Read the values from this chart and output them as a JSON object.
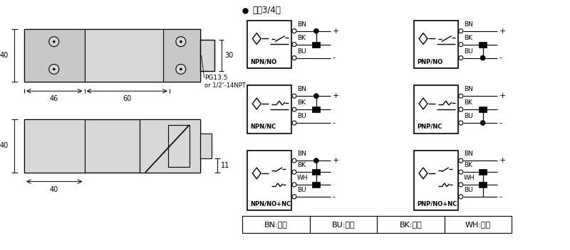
{
  "bg_color": "#ffffff",
  "line_color": "#000000",
  "gray_fill": "#c8c8c8",
  "light_gray": "#d8d8d8",
  "title_text": "直涁3/4线",
  "color_table": [
    "BN:棕色",
    "BU:兰色",
    "BK:黑色",
    "WH:白色"
  ],
  "circuits": [
    {
      "label": "NPN/NO",
      "type": "NO",
      "npn": true,
      "col": 0,
      "row": 0
    },
    {
      "label": "NPN/NC",
      "type": "NC",
      "npn": true,
      "col": 0,
      "row": 1
    },
    {
      "label": "NPN/NO+NC",
      "type": "NO+NC",
      "npn": true,
      "col": 0,
      "row": 2
    },
    {
      "label": "PNP/NO",
      "type": "NO",
      "npn": false,
      "col": 1,
      "row": 0
    },
    {
      "label": "PNP/NC",
      "type": "NC",
      "npn": false,
      "col": 1,
      "row": 1
    },
    {
      "label": "PNP/NO+NC",
      "type": "NO+NC",
      "npn": false,
      "col": 1,
      "row": 2
    }
  ]
}
